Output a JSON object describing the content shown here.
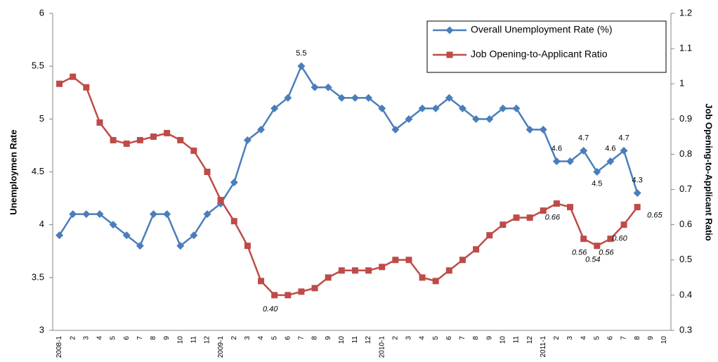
{
  "chart_data": {
    "type": "line",
    "categories": [
      "2008-1",
      "2",
      "3",
      "4",
      "5",
      "6",
      "7",
      "8",
      "9",
      "10",
      "11",
      "12",
      "2009-1",
      "2",
      "3",
      "4",
      "5",
      "6",
      "7",
      "8",
      "9",
      "10",
      "11",
      "12",
      "2010-1",
      "2",
      "3",
      "4",
      "5",
      "6",
      "7",
      "8",
      "9",
      "10",
      "11",
      "12",
      "2011-1",
      "2",
      "3",
      "4",
      "5",
      "6",
      "7",
      "8",
      "9",
      "10"
    ],
    "y_label": "Unemploymen Rate",
    "y2_label": "Job Opening-to-Applicant Ratio",
    "ylim": [
      3,
      6
    ],
    "yticks": [
      3,
      3.5,
      4,
      4.5,
      5,
      5.5,
      6
    ],
    "y2lim": [
      0.3,
      1.2
    ],
    "y2ticks": [
      0.3,
      0.4,
      0.5,
      0.6,
      0.7,
      0.8,
      0.9,
      1,
      1.1,
      1.2
    ],
    "legend": "top-right",
    "series": [
      {
        "name": "Overall Unemployment Rate (%)",
        "color": "#4a7ebb",
        "marker": "diamond",
        "values": [
          3.9,
          4.1,
          4.1,
          4.1,
          4.0,
          3.9,
          3.8,
          4.1,
          4.1,
          3.8,
          3.9,
          4.1,
          4.2,
          4.4,
          4.8,
          4.9,
          5.1,
          5.2,
          5.5,
          5.3,
          5.3,
          5.2,
          5.2,
          5.2,
          5.1,
          4.9,
          5.0,
          5.1,
          5.1,
          5.2,
          5.1,
          5.0,
          5.0,
          5.1,
          5.1,
          4.9,
          4.9,
          4.6,
          4.6,
          4.7,
          4.5,
          4.6,
          4.7,
          4.3,
          null,
          null
        ],
        "value_labels": [
          null,
          null,
          null,
          null,
          null,
          null,
          null,
          null,
          null,
          null,
          null,
          null,
          null,
          null,
          null,
          null,
          null,
          null,
          "5.5",
          null,
          null,
          null,
          null,
          null,
          null,
          null,
          null,
          null,
          null,
          null,
          null,
          null,
          null,
          null,
          null,
          null,
          null,
          "4.6",
          null,
          "4.7",
          "4.5",
          "4.6",
          "4.7",
          "4.3",
          null,
          null
        ]
      },
      {
        "name": "Job Opening-to-Applicant Ratio",
        "color": "#be4b48",
        "marker": "square",
        "axis": "y2",
        "values": [
          1.0,
          1.02,
          0.99,
          0.89,
          0.84,
          0.83,
          0.84,
          0.85,
          0.86,
          0.84,
          0.81,
          0.75,
          0.67,
          0.61,
          0.54,
          0.44,
          0.4,
          0.4,
          0.41,
          0.42,
          0.45,
          0.47,
          0.47,
          0.47,
          0.48,
          0.5,
          0.5,
          0.45,
          0.44,
          0.47,
          0.5,
          0.53,
          0.57,
          0.6,
          0.62,
          0.62,
          0.64,
          0.66,
          0.65,
          0.56,
          0.54,
          0.56,
          0.6,
          0.65,
          null,
          null
        ],
        "value_labels": [
          null,
          null,
          null,
          null,
          null,
          null,
          null,
          null,
          null,
          null,
          null,
          null,
          null,
          null,
          null,
          null,
          "0.40",
          null,
          null,
          null,
          null,
          null,
          null,
          null,
          null,
          null,
          null,
          null,
          null,
          null,
          null,
          null,
          null,
          null,
          null,
          null,
          null,
          "0.66",
          null,
          "0.56",
          "0.54",
          "0.56",
          "0.60",
          "0.65",
          null,
          null
        ]
      }
    ]
  }
}
